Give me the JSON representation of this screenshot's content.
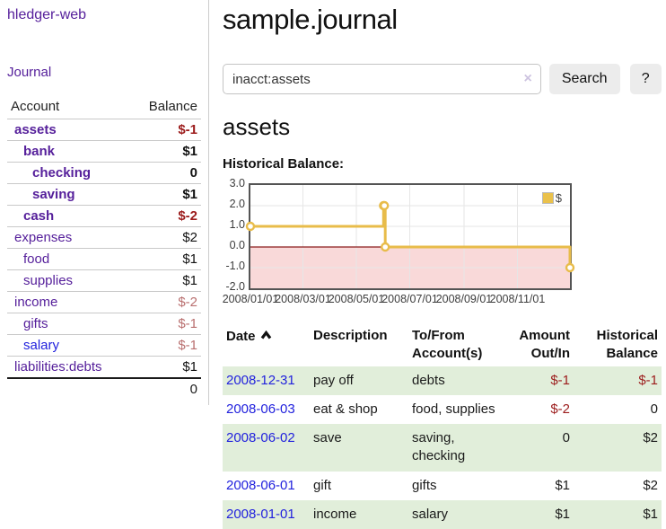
{
  "sidebar": {
    "brand": "hledger-web",
    "journal_link": "Journal",
    "accounts": {
      "header": {
        "account": "Account",
        "balance": "Balance"
      },
      "rows": [
        {
          "name": "assets",
          "balance": "$-1",
          "level": 0,
          "emph": true,
          "neg": "strong",
          "color": "purple"
        },
        {
          "name": "bank",
          "balance": "$1",
          "level": 1,
          "emph": true,
          "neg": "none",
          "color": "purple"
        },
        {
          "name": "checking",
          "balance": "0",
          "level": 2,
          "emph": true,
          "neg": "none",
          "color": "purple"
        },
        {
          "name": "saving",
          "balance": "$1",
          "level": 2,
          "emph": true,
          "neg": "none",
          "color": "purple"
        },
        {
          "name": "cash",
          "balance": "$-2",
          "level": 1,
          "emph": true,
          "neg": "strong",
          "color": "purple"
        },
        {
          "name": "expenses",
          "balance": "$2",
          "level": 0,
          "emph": false,
          "neg": "none",
          "color": "purple"
        },
        {
          "name": "food",
          "balance": "$1",
          "level": 1,
          "emph": false,
          "neg": "none",
          "color": "purple"
        },
        {
          "name": "supplies",
          "balance": "$1",
          "level": 1,
          "emph": false,
          "neg": "none",
          "color": "purple"
        },
        {
          "name": "income",
          "balance": "$-2",
          "level": 0,
          "emph": false,
          "neg": "soft",
          "color": "purple"
        },
        {
          "name": "gifts",
          "balance": "$-1",
          "level": 1,
          "emph": false,
          "neg": "soft",
          "color": "purple"
        },
        {
          "name": "salary",
          "balance": "$-1",
          "level": 1,
          "emph": false,
          "neg": "soft",
          "color": "blue"
        },
        {
          "name": "liabilities:debts",
          "balance": "$1",
          "level": 0,
          "emph": false,
          "neg": "none",
          "color": "purple"
        }
      ],
      "total": "0"
    }
  },
  "header": {
    "title": "sample.journal"
  },
  "search": {
    "value": "inacct:assets",
    "clear_label": "×",
    "search_button": "Search",
    "help_button": "?"
  },
  "register": {
    "account_title": "assets",
    "chart_heading": "Historical Balance:",
    "table": {
      "headers": {
        "date": "Date",
        "description": "Description",
        "tofrom": "To/From\nAccount(s)",
        "amount": "Amount\nOut/In",
        "balance": "Historical\nBalance"
      },
      "rows": [
        {
          "date": "2008-12-31",
          "description": "pay off",
          "accounts": "debts",
          "amount": "$-1",
          "balance": "$-1",
          "amount_neg": true,
          "balance_neg": true,
          "shade": true
        },
        {
          "date": "2008-06-03",
          "description": "eat & shop",
          "accounts": "food, supplies",
          "amount": "$-2",
          "balance": "0",
          "amount_neg": true,
          "balance_neg": false,
          "shade": false
        },
        {
          "date": "2008-06-02",
          "description": "save",
          "accounts": "saving, checking",
          "amount": "0",
          "balance": "$2",
          "amount_neg": false,
          "balance_neg": false,
          "shade": true
        },
        {
          "date": "2008-06-01",
          "description": "gift",
          "accounts": "gifts",
          "amount": "$1",
          "balance": "$2",
          "amount_neg": false,
          "balance_neg": false,
          "shade": false
        },
        {
          "date": "2008-01-01",
          "description": "income",
          "accounts": "salary",
          "amount": "$1",
          "balance": "$1",
          "amount_neg": false,
          "balance_neg": false,
          "shade": true
        }
      ]
    }
  },
  "chart_data": {
    "type": "line",
    "title": "Historical Balance",
    "step": "after",
    "series": [
      {
        "name": "$",
        "points": [
          [
            "2008-01-01",
            1
          ],
          [
            "2008-06-01",
            2
          ],
          [
            "2008-06-02",
            2
          ],
          [
            "2008-06-03",
            0
          ],
          [
            "2008-12-31",
            -1
          ]
        ]
      }
    ],
    "x_range": [
      "2008-01-01",
      "2008-12-31"
    ],
    "x_ticks": [
      "2008/01/01",
      "2008/03/01",
      "2008/05/01",
      "2008/07/01",
      "2008/09/01",
      "2008/11/01"
    ],
    "y_ticks": [
      3.0,
      2.0,
      1.0,
      0.0,
      -1.0,
      -2.0
    ],
    "ylim": [
      -2,
      3
    ],
    "grid": true,
    "legend": {
      "label": "$",
      "position": "top-right"
    },
    "colors": {
      "line": "#e8bc4a",
      "marker_fill": "#ffffff",
      "negative_region": "#f9d9d9",
      "zero_line": "#8b1a1a",
      "grid": "#e6e6e6",
      "border": "#545454"
    }
  }
}
